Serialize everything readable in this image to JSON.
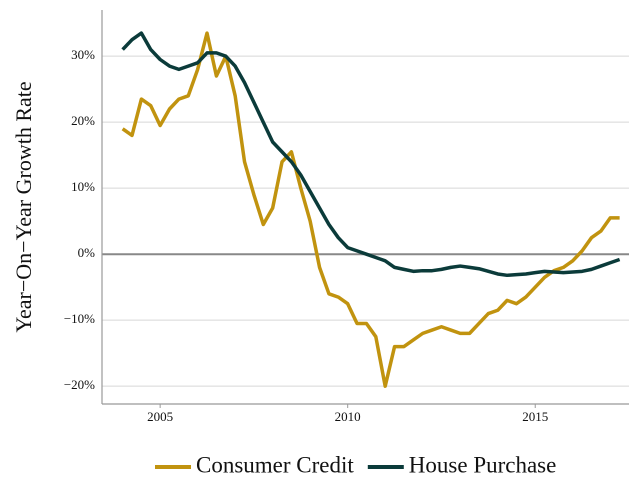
{
  "chart_data": {
    "type": "line",
    "y_label": "Year−On−Year Growth Rate",
    "x": [
      2004,
      2004.25,
      2004.5,
      2004.75,
      2005,
      2005.25,
      2005.5,
      2005.75,
      2006,
      2006.25,
      2006.5,
      2006.75,
      2007,
      2007.25,
      2007.5,
      2007.75,
      2008,
      2008.25,
      2008.5,
      2008.75,
      2009,
      2009.25,
      2009.5,
      2009.75,
      2010,
      2010.25,
      2010.5,
      2010.75,
      2011,
      2011.25,
      2011.5,
      2011.75,
      2012,
      2012.25,
      2012.5,
      2012.75,
      2013,
      2013.25,
      2013.5,
      2013.75,
      2014,
      2014.25,
      2014.5,
      2014.75,
      2015,
      2015.25,
      2015.5,
      2015.75,
      2016,
      2016.25,
      2016.5,
      2016.75,
      2017,
      2017.25
    ],
    "series": [
      {
        "name": "Consumer Credit",
        "color": "#c1930f",
        "values": [
          19,
          18,
          23.5,
          22.5,
          19.5,
          22,
          23.5,
          24,
          28,
          33.5,
          27,
          30,
          24,
          14,
          9,
          4.5,
          7,
          14,
          15.5,
          10,
          5,
          -2,
          -6,
          -6.5,
          -7.5,
          -10.5,
          -10.5,
          -12.5,
          -20,
          -14,
          -14,
          -13,
          -12,
          -11.5,
          -11,
          -11.5,
          -12,
          -12,
          -10.5,
          -9,
          -8.5,
          -7,
          -7.5,
          -6.5,
          -5,
          -3.5,
          -2.5,
          -2,
          -1,
          0.5,
          2.5,
          3.5,
          5.5,
          5.5
        ]
      },
      {
        "name": "House Purchase",
        "color": "#0b3b3a",
        "values": [
          31,
          32.5,
          33.5,
          31,
          29.5,
          28.5,
          28,
          28.5,
          29,
          30.5,
          30.5,
          30,
          28.5,
          26,
          23,
          20,
          17,
          15.5,
          14,
          12,
          9.5,
          7,
          4.5,
          2.5,
          1,
          0.5,
          0,
          -0.5,
          -1,
          -2,
          -2.3,
          -2.6,
          -2.5,
          -2.5,
          -2.3,
          -2,
          -1.8,
          -2,
          -2.2,
          -2.6,
          -3,
          -3.2,
          -3.1,
          -3,
          -2.8,
          -2.6,
          -2.7,
          -2.8,
          -2.7,
          -2.6,
          -2.3,
          -1.8,
          -1.3,
          -0.8
        ]
      }
    ],
    "xlim": [
      2003.45,
      2017.5
    ],
    "xticks": [
      2005,
      2010,
      2015
    ],
    "ylim": [
      -22.7,
      37
    ],
    "yticks": [
      {
        "value": -20,
        "label": "−20%"
      },
      {
        "value": -10,
        "label": "−10%"
      },
      {
        "value": 0,
        "label": "0%"
      },
      {
        "value": 10,
        "label": "10%"
      },
      {
        "value": 20,
        "label": "20%"
      },
      {
        "value": 30,
        "label": "30%"
      }
    ],
    "grid": true,
    "zero_line": true,
    "legend": "bottom"
  }
}
